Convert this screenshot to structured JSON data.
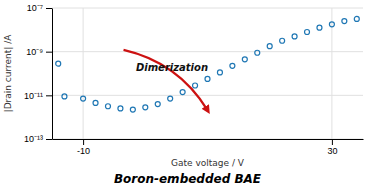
{
  "chart_data": {
    "type": "scatter",
    "title": "Boron-embedded BAE",
    "xlabel": "Gate voltage / V",
    "ylabel": "|Drain current| /A",
    "annotation": "Dimerization",
    "log": "y",
    "grid": true,
    "xlim": [
      -15,
      35
    ],
    "ylim": [
      1e-13,
      1e-07
    ],
    "xticks": [
      -10,
      30
    ],
    "yticks": [
      {
        "value": 1e-13,
        "label": "10⁻¹³"
      },
      {
        "value": 1e-11,
        "label": "10⁻¹¹"
      },
      {
        "value": 1e-09,
        "label": "10⁻⁹"
      },
      {
        "value": 1e-07,
        "label": "10⁻⁷"
      }
    ],
    "x": [
      -13,
      -10,
      -8,
      -6,
      -4,
      -2,
      0,
      2,
      4,
      6,
      8,
      10,
      12,
      14,
      16,
      18,
      20,
      22,
      24,
      26,
      28,
      30,
      32,
      34,
      -14
    ],
    "values": [
      8.91251e-12,
      7.07946e-12,
      4.46684e-12,
      3.16228e-12,
      2.51189e-12,
      2.23872e-12,
      2.81838e-12,
      3.98107e-12,
      7.07946e-12,
      1.41254e-11,
      2.81838e-11,
      5.62341e-11,
      1.12202e-10,
      2.23872e-10,
      4.46684e-10,
      8.91251e-10,
      1.77828e-09,
      3.16228e-09,
      5.01187e-09,
      7.94328e-09,
      1.25893e-08,
      1.77828e-08,
      2.51189e-08,
      3.16228e-08,
      2.81838e-10
    ]
  }
}
